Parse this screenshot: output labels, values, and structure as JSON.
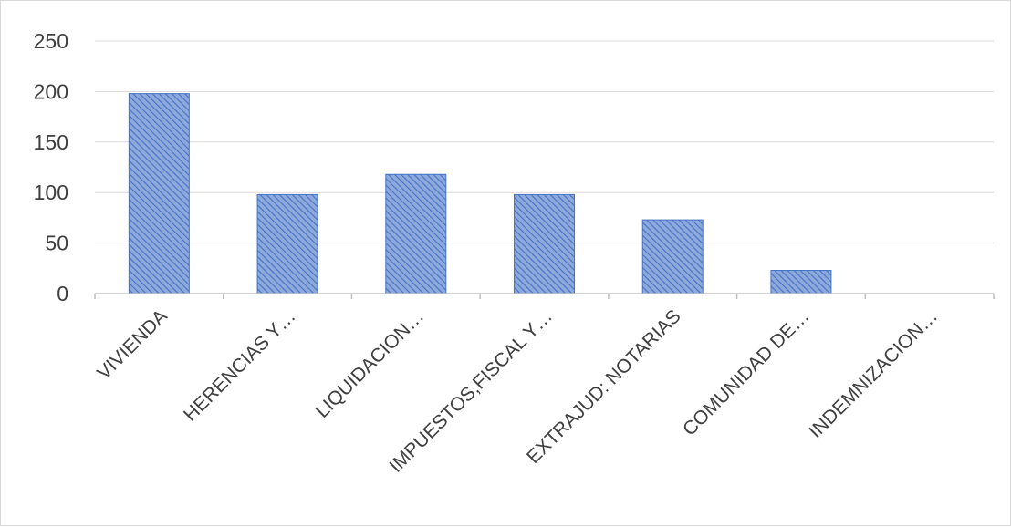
{
  "chart_data": {
    "type": "bar",
    "categories": [
      "VIVIENDA",
      "HERENCIAS Y…",
      "LIQUIDACION…",
      "IMPUESTOS,FISCAL Y…",
      "EXTRAJUD: NOTARIAS",
      "COMUNIDAD DE…",
      "INDEMNIZACION…"
    ],
    "values": [
      198,
      98,
      118,
      98,
      73,
      23,
      0
    ],
    "ylim": [
      0,
      250
    ],
    "yticks": [
      0,
      50,
      100,
      150,
      200,
      250
    ],
    "grid": true,
    "legend": "none",
    "bar_fill": "#8ea9db",
    "bar_pattern_line": "#4472c4",
    "bar_border": "#4472c4",
    "grid_color": "#d9d9d9",
    "axis_color": "#bfbfbf",
    "text_color": "#404040"
  }
}
